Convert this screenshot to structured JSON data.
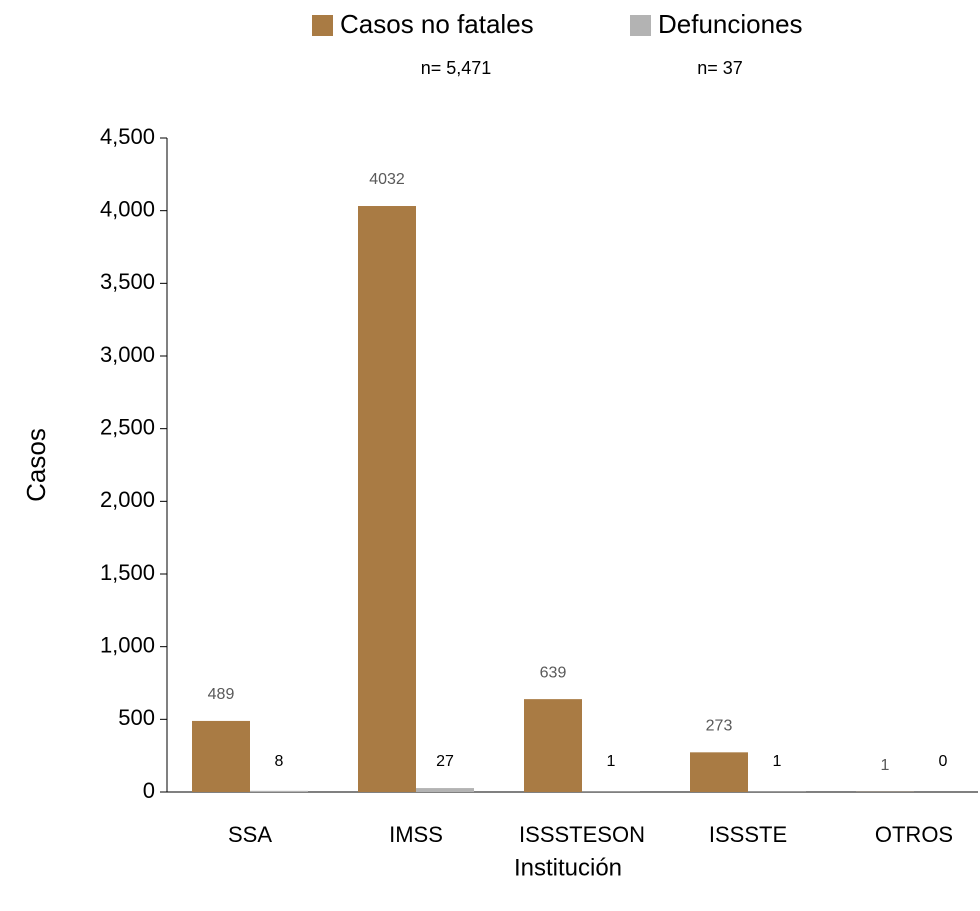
{
  "chart_data": {
    "type": "bar",
    "x_label": "Institución",
    "y_label": "Casos",
    "categories": [
      "SSA",
      "IMSS",
      "ISSSTESON",
      "ISSSTE",
      "OTROS"
    ],
    "series": [
      {
        "name": "Casos no fatales",
        "color": "#a97b44",
        "n_label": "n= 5,471",
        "values": [
          489,
          4032,
          639,
          273,
          1
        ]
      },
      {
        "name": "Defunciones",
        "color": "#b3b3b3",
        "n_label": "n= 37",
        "values": [
          8,
          27,
          1,
          1,
          0
        ]
      }
    ],
    "ylim": [
      0,
      4500
    ],
    "yticks": [
      0,
      500,
      {
        "value": 1000,
        "label": "1,000"
      },
      {
        "value": 1500,
        "label": "1,500"
      },
      {
        "value": 2000,
        "label": "2,000"
      },
      {
        "value": 2500,
        "label": "2,500"
      },
      {
        "value": 3000,
        "label": "3,000"
      },
      {
        "value": 3500,
        "label": "3,500"
      },
      {
        "value": 4000,
        "label": "4,000"
      },
      {
        "value": 4500,
        "label": "4,500"
      }
    ],
    "grid": false
  }
}
